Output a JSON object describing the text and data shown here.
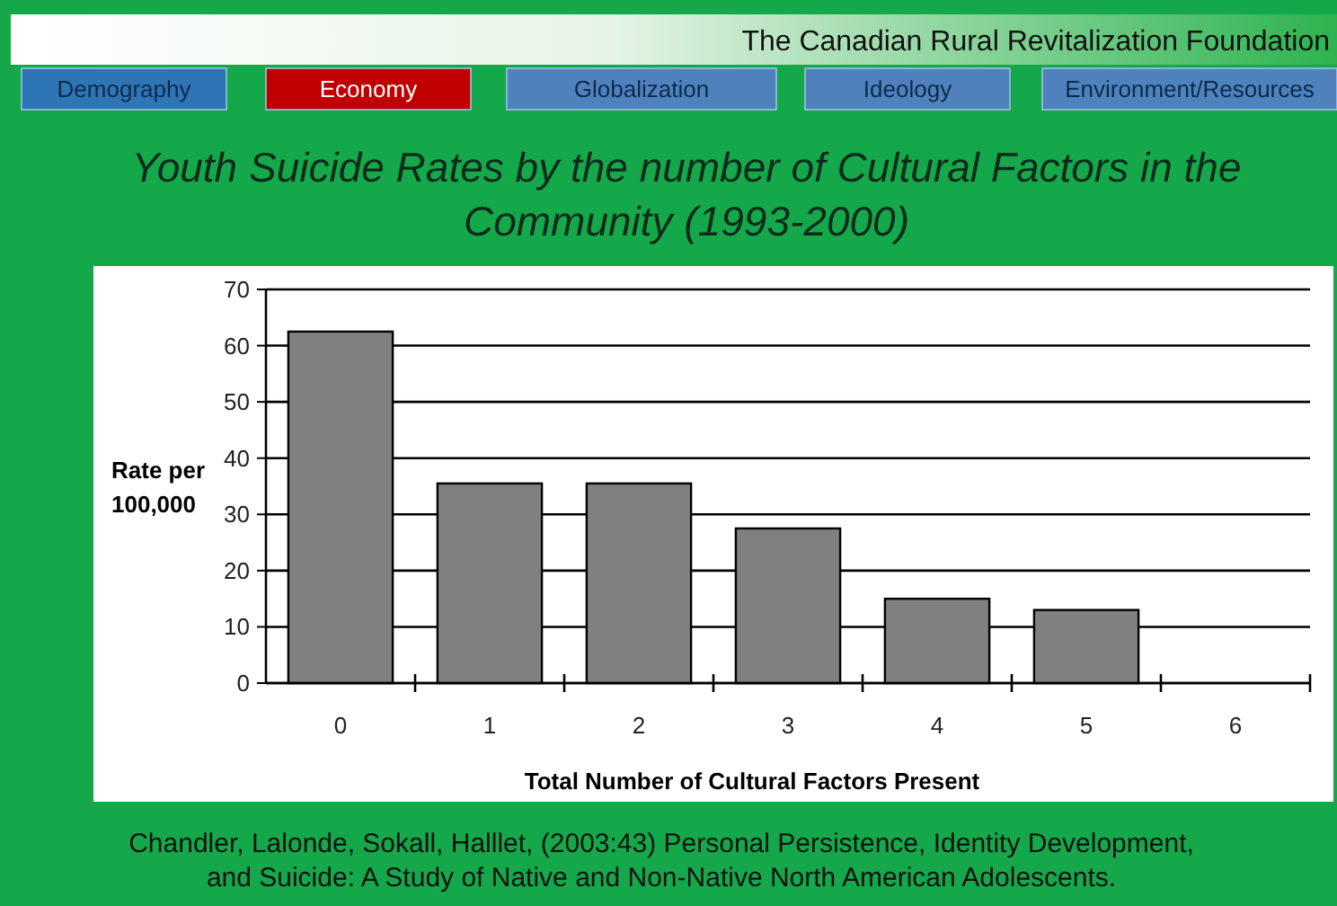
{
  "chart_data": {
    "type": "bar",
    "title": "Youth Suicide Rates by the number of Cultural Factors in the Community (1993-2000)",
    "xlabel": "Total Number of Cultural Factors Present",
    "ylabel": "Rate per 100,000",
    "categories": [
      "0",
      "1",
      "2",
      "3",
      "4",
      "5",
      "6"
    ],
    "values": [
      62.5,
      35.5,
      35.5,
      27.5,
      15,
      13,
      null
    ],
    "color": "#808080",
    "ylim": [
      0,
      70
    ],
    "yticks": [
      0,
      10,
      20,
      30,
      40,
      50,
      60,
      70
    ],
    "grid": "y",
    "annotations": [
      "The Canadian Rural Revitalization Foundation",
      "Demography",
      "Economy",
      "Globalization",
      "Ideology",
      "Environment/Resources",
      "Chandler, Lalonde, Sokall, Halllet, (2003:43) Personal Persistence, Identity Development, and Suicide: A Study of Native and Non-Native North American Adolescents."
    ]
  }
}
